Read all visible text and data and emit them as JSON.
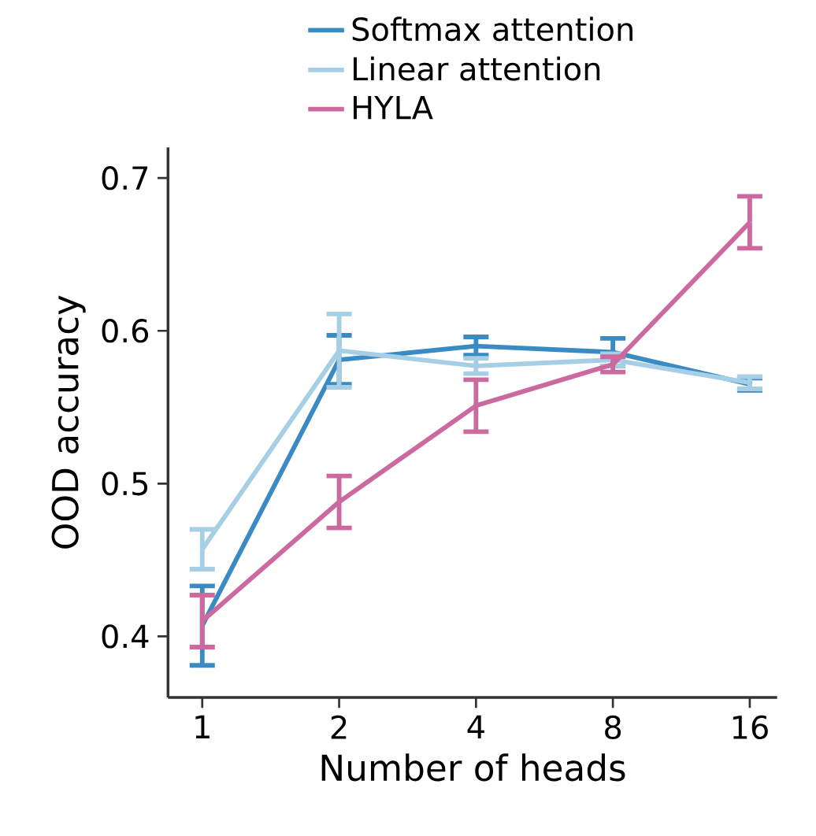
{
  "chart_data": {
    "type": "line",
    "xlabel": "Number of heads",
    "ylabel": "OOD accuracy",
    "categories": [
      "1",
      "2",
      "4",
      "8",
      "16"
    ],
    "ylim": [
      0.36,
      0.72
    ],
    "yticks": [
      0.4,
      0.5,
      0.6,
      0.7
    ],
    "legend": "top",
    "series": [
      {
        "name": "Softmax attention",
        "color": "#3a8ac4",
        "values": [
          0.407,
          0.581,
          0.59,
          0.586,
          0.565
        ],
        "errors": [
          0.026,
          0.016,
          0.006,
          0.009,
          0.004
        ]
      },
      {
        "name": "Linear attention",
        "color": "#a6cfe6",
        "values": [
          0.457,
          0.587,
          0.577,
          0.581,
          0.566
        ],
        "errors": [
          0.013,
          0.024,
          0.005,
          0.004,
          0.004
        ]
      },
      {
        "name": "HYLA",
        "color": "#cc6aa0",
        "values": [
          0.41,
          0.488,
          0.551,
          0.578,
          0.671
        ],
        "errors": [
          0.017,
          0.017,
          0.017,
          0.005,
          0.017
        ]
      }
    ]
  }
}
